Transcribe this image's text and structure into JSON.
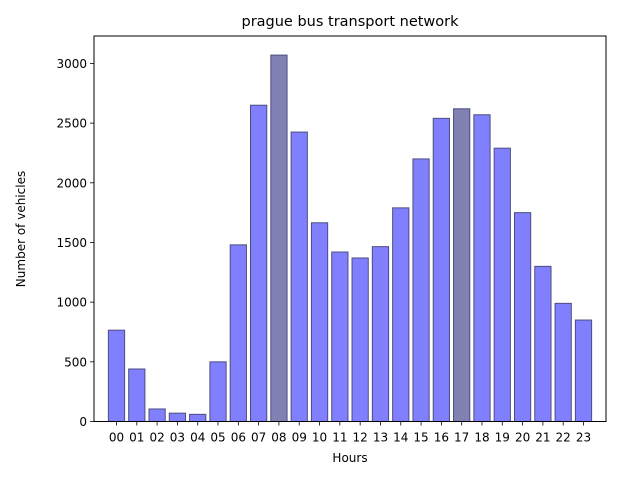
{
  "chart_data": {
    "type": "bar",
    "title": "prague bus transport network",
    "xlabel": "Hours",
    "ylabel": "Number of vehicles",
    "categories": [
      "00",
      "01",
      "02",
      "03",
      "04",
      "05",
      "06",
      "07",
      "08",
      "09",
      "10",
      "11",
      "12",
      "13",
      "14",
      "15",
      "16",
      "17",
      "18",
      "19",
      "20",
      "21",
      "22",
      "23"
    ],
    "values": [
      765,
      440,
      105,
      70,
      60,
      500,
      1480,
      2650,
      3070,
      2425,
      1665,
      1420,
      1370,
      1465,
      1790,
      2200,
      2540,
      2620,
      2570,
      2290,
      1750,
      1300,
      990,
      850
    ],
    "highlighted": [
      "08",
      "17"
    ],
    "ylim": [
      0,
      3230
    ],
    "yticks": [
      0,
      500,
      1000,
      1500,
      2000,
      2500,
      3000
    ],
    "grid": false,
    "legend": "none",
    "colors": {
      "bar_fill": "#8080ff",
      "bar_highlight_fill": "#8080b3",
      "bar_edge": "#4d4d80",
      "axis": "#000000"
    }
  }
}
